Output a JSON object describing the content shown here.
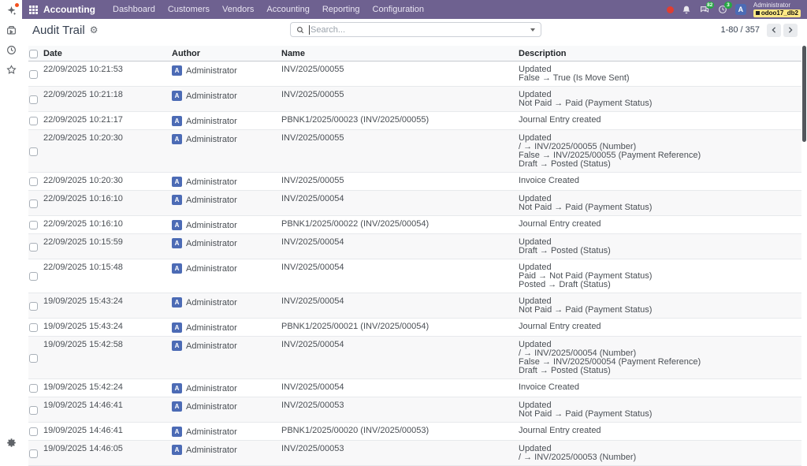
{
  "navbar": {
    "brand": "Accounting",
    "menus": [
      "Dashboard",
      "Customers",
      "Vendors",
      "Accounting",
      "Reporting",
      "Configuration"
    ],
    "systray": {
      "messages_badge": "82",
      "activities_badge": "3",
      "avatar_letter": "A",
      "user_name": "Administrator",
      "db_badge": "odoo17_db2"
    }
  },
  "sidebar_icons": [
    "sparkle-icon",
    "layers-icon",
    "clock-icon",
    "star-icon",
    "gear-icon"
  ],
  "control_panel": {
    "title": "Audit Trail",
    "gear_glyph": "⚙",
    "search_placeholder": "Search...",
    "pager": {
      "text": "1-80 / 357"
    }
  },
  "table": {
    "columns": [
      "Date",
      "Author",
      "Name",
      "Description"
    ],
    "rows": [
      {
        "date": "22/09/2025 10:21:53",
        "author": "Administrator",
        "name": "INV/2025/00055",
        "description": [
          "Updated",
          "False  →  True (Is Move Sent)"
        ]
      },
      {
        "date": "22/09/2025 10:21:18",
        "author": "Administrator",
        "name": "INV/2025/00055",
        "description": [
          "Updated",
          "Not Paid  →  Paid (Payment Status)"
        ]
      },
      {
        "date": "22/09/2025 10:21:17",
        "author": "Administrator",
        "name": "PBNK1/2025/00023 (INV/2025/00055)",
        "description": [
          "Journal Entry created"
        ]
      },
      {
        "date": "22/09/2025 10:20:30",
        "author": "Administrator",
        "name": "INV/2025/00055",
        "description": [
          "Updated",
          "/  →  INV/2025/00055 (Number)",
          "False  →  INV/2025/00055 (Payment Reference)",
          "Draft  →  Posted (Status)"
        ]
      },
      {
        "date": "22/09/2025 10:20:30",
        "author": "Administrator",
        "name": "INV/2025/00055",
        "description": [
          "Invoice Created"
        ]
      },
      {
        "date": "22/09/2025 10:16:10",
        "author": "Administrator",
        "name": "INV/2025/00054",
        "description": [
          "Updated",
          "Not Paid  →  Paid (Payment Status)"
        ]
      },
      {
        "date": "22/09/2025 10:16:10",
        "author": "Administrator",
        "name": "PBNK1/2025/00022 (INV/2025/00054)",
        "description": [
          "Journal Entry created"
        ]
      },
      {
        "date": "22/09/2025 10:15:59",
        "author": "Administrator",
        "name": "INV/2025/00054",
        "description": [
          "Updated",
          "Draft  →  Posted (Status)"
        ]
      },
      {
        "date": "22/09/2025 10:15:48",
        "author": "Administrator",
        "name": "INV/2025/00054",
        "description": [
          "Updated",
          "Paid  →  Not Paid (Payment Status)",
          "Posted  →  Draft (Status)"
        ]
      },
      {
        "date": "19/09/2025 15:43:24",
        "author": "Administrator",
        "name": "INV/2025/00054",
        "description": [
          "Updated",
          "Not Paid  →  Paid (Payment Status)"
        ]
      },
      {
        "date": "19/09/2025 15:43:24",
        "author": "Administrator",
        "name": "PBNK1/2025/00021 (INV/2025/00054)",
        "description": [
          "Journal Entry created"
        ]
      },
      {
        "date": "19/09/2025 15:42:58",
        "author": "Administrator",
        "name": "INV/2025/00054",
        "description": [
          "Updated",
          "/  →  INV/2025/00054 (Number)",
          "False  →  INV/2025/00054 (Payment Reference)",
          "Draft  →  Posted (Status)"
        ]
      },
      {
        "date": "19/09/2025 15:42:24",
        "author": "Administrator",
        "name": "INV/2025/00054",
        "description": [
          "Invoice Created"
        ]
      },
      {
        "date": "19/09/2025 14:46:41",
        "author": "Administrator",
        "name": "INV/2025/00053",
        "description": [
          "Updated",
          "Not Paid  →  Paid (Payment Status)"
        ]
      },
      {
        "date": "19/09/2025 14:46:41",
        "author": "Administrator",
        "name": "PBNK1/2025/00020 (INV/2025/00053)",
        "description": [
          "Journal Entry created"
        ]
      },
      {
        "date": "19/09/2025 14:46:05",
        "author": "Administrator",
        "name": "INV/2025/00053",
        "description": [
          "Updated",
          "/  →  INV/2025/00053 (Number)"
        ]
      }
    ]
  },
  "colors": {
    "navbar_bg": "#6e6190",
    "badge_green": "#28a745",
    "record_red": "#df3e32",
    "avatar_blue": "#4c6bb5",
    "db_badge_yellow": "#ffe885"
  }
}
